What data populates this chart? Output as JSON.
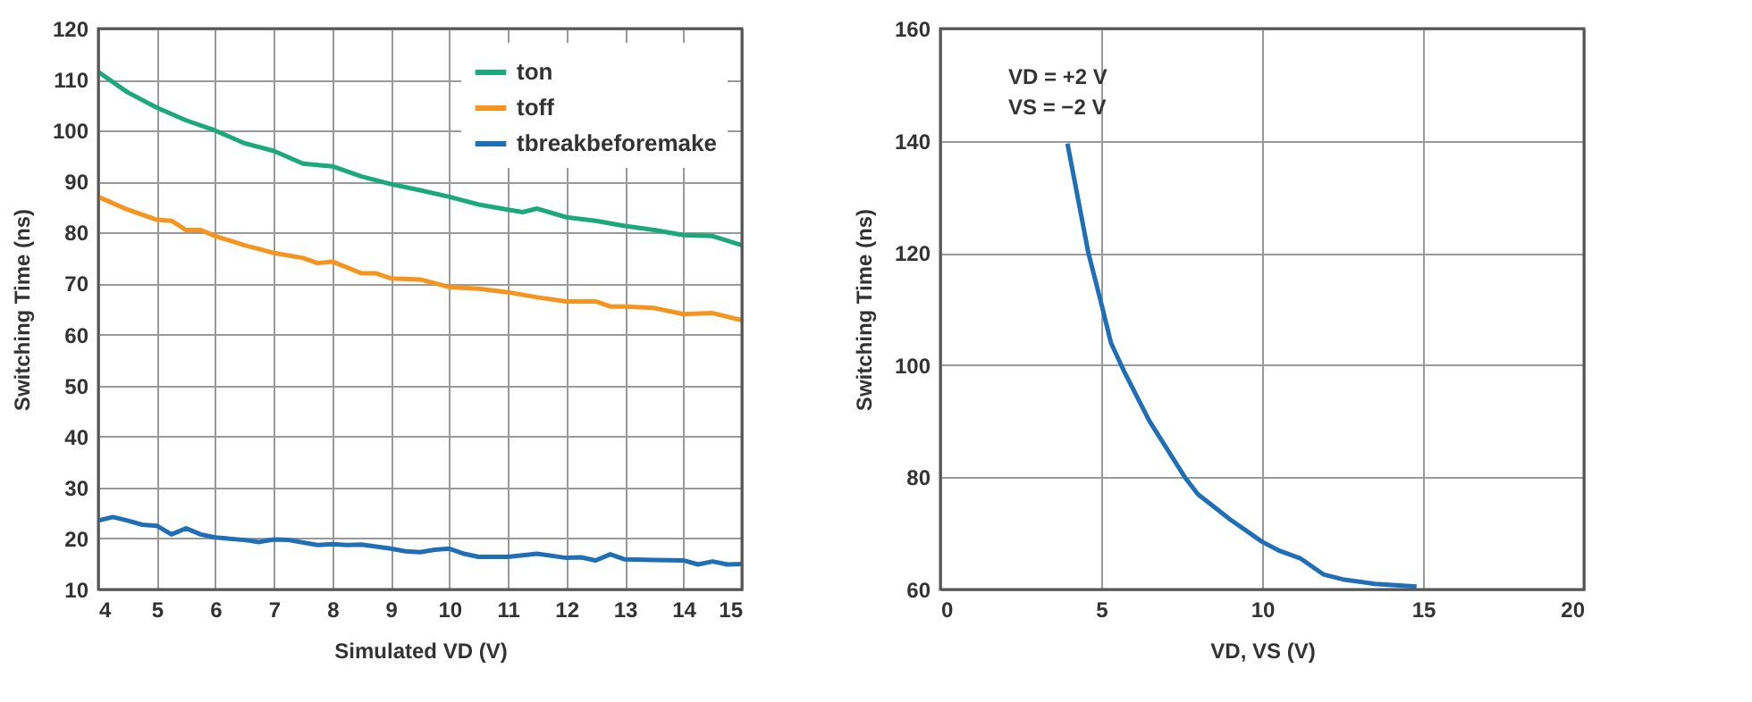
{
  "chart_data": [
    {
      "type": "line",
      "xlabel": "Simulated VD (V)",
      "ylabel": "Switching Time (ns)",
      "xlim": [
        4,
        15
      ],
      "xticks": [
        4,
        5,
        6,
        7,
        8,
        9,
        10,
        11,
        12,
        13,
        14,
        15
      ],
      "ylim": [
        10,
        120
      ],
      "yticks": [
        10,
        20,
        30,
        40,
        50,
        60,
        70,
        80,
        90,
        100,
        110,
        120
      ],
      "grid": true,
      "legend": "top right",
      "series": [
        {
          "name": "ton",
          "color": "#1aa97a",
          "x": [
            4,
            4.5,
            5,
            5.5,
            6,
            6.5,
            7,
            7.5,
            8,
            8.5,
            9,
            9.5,
            10,
            10.5,
            11,
            11.25,
            11.5,
            12,
            12.5,
            13,
            13.5,
            14,
            14.5,
            15
          ],
          "values": [
            111.5,
            107.5,
            104.5,
            102,
            100,
            97.5,
            96,
            93.5,
            93,
            91,
            89.5,
            88.3,
            87,
            85.5,
            84.5,
            84,
            84.7,
            83,
            82.3,
            81.3,
            80.5,
            79.5,
            79.3,
            77.5
          ]
        },
        {
          "name": "toff",
          "color": "#f7941d",
          "x": [
            4,
            4.5,
            5,
            5.25,
            5.5,
            5.75,
            6,
            6.5,
            7,
            7.5,
            7.75,
            8,
            8.5,
            8.75,
            9,
            9.5,
            10,
            10.5,
            11,
            11.5,
            12,
            12.5,
            12.75,
            13,
            13.5,
            14,
            14.5,
            15
          ],
          "values": [
            87,
            84.5,
            82.5,
            82.3,
            80.5,
            80.5,
            79.3,
            77.5,
            76,
            75,
            74,
            74.3,
            72,
            72,
            71,
            70.8,
            69.3,
            69,
            68.3,
            67.3,
            66.5,
            66.5,
            65.5,
            65.5,
            65.2,
            64,
            64.2,
            62.8
          ]
        },
        {
          "name": "tbreakbeforemake",
          "color": "#1f6fb8",
          "x": [
            4,
            4.25,
            4.5,
            4.75,
            5,
            5.25,
            5.5,
            5.75,
            6,
            6.5,
            6.75,
            7,
            7.25,
            7.75,
            8,
            8.25,
            8.5,
            9,
            9.25,
            9.5,
            9.75,
            10,
            10.25,
            10.5,
            11,
            11.5,
            12,
            12.25,
            12.5,
            12.75,
            13,
            13.5,
            14,
            14.25,
            14.5,
            14.75,
            15
          ],
          "values": [
            23.5,
            24.2,
            23.5,
            22.7,
            22.5,
            20.8,
            22,
            20.8,
            20.2,
            19.7,
            19.3,
            19.8,
            19.7,
            18.7,
            18.9,
            18.7,
            18.8,
            18,
            17.5,
            17.3,
            17.8,
            18,
            17,
            16.4,
            16.4,
            17,
            16.2,
            16.3,
            15.7,
            16.9,
            15.9,
            15.8,
            15.7,
            14.9,
            15.5,
            14.9,
            15
          ]
        }
      ]
    },
    {
      "type": "line",
      "xlabel": "VD, VS (V)",
      "ylabel": "Switching Time (ns)",
      "xlim": [
        0,
        20
      ],
      "xticks": [
        0,
        5,
        10,
        15,
        20
      ],
      "ylim": [
        60,
        160
      ],
      "yticks": [
        60,
        80,
        100,
        120,
        140,
        160
      ],
      "grid": true,
      "annotations": [
        "VD = +2 V",
        "VS = −2 V"
      ],
      "series": [
        {
          "color": "#1f6fb8",
          "x": [
            3.95,
            4.3,
            4.6,
            5,
            5.3,
            5.7,
            6.5,
            7.6,
            8,
            9,
            10,
            10.5,
            11.2,
            11.5,
            11.9,
            12.5,
            13.5,
            14.8
          ],
          "values": [
            139.5,
            129,
            120,
            111,
            104,
            99,
            90,
            80,
            77,
            72.5,
            68.5,
            67,
            65.5,
            64.3,
            62.7,
            61.8,
            61,
            60.5
          ]
        }
      ]
    }
  ]
}
